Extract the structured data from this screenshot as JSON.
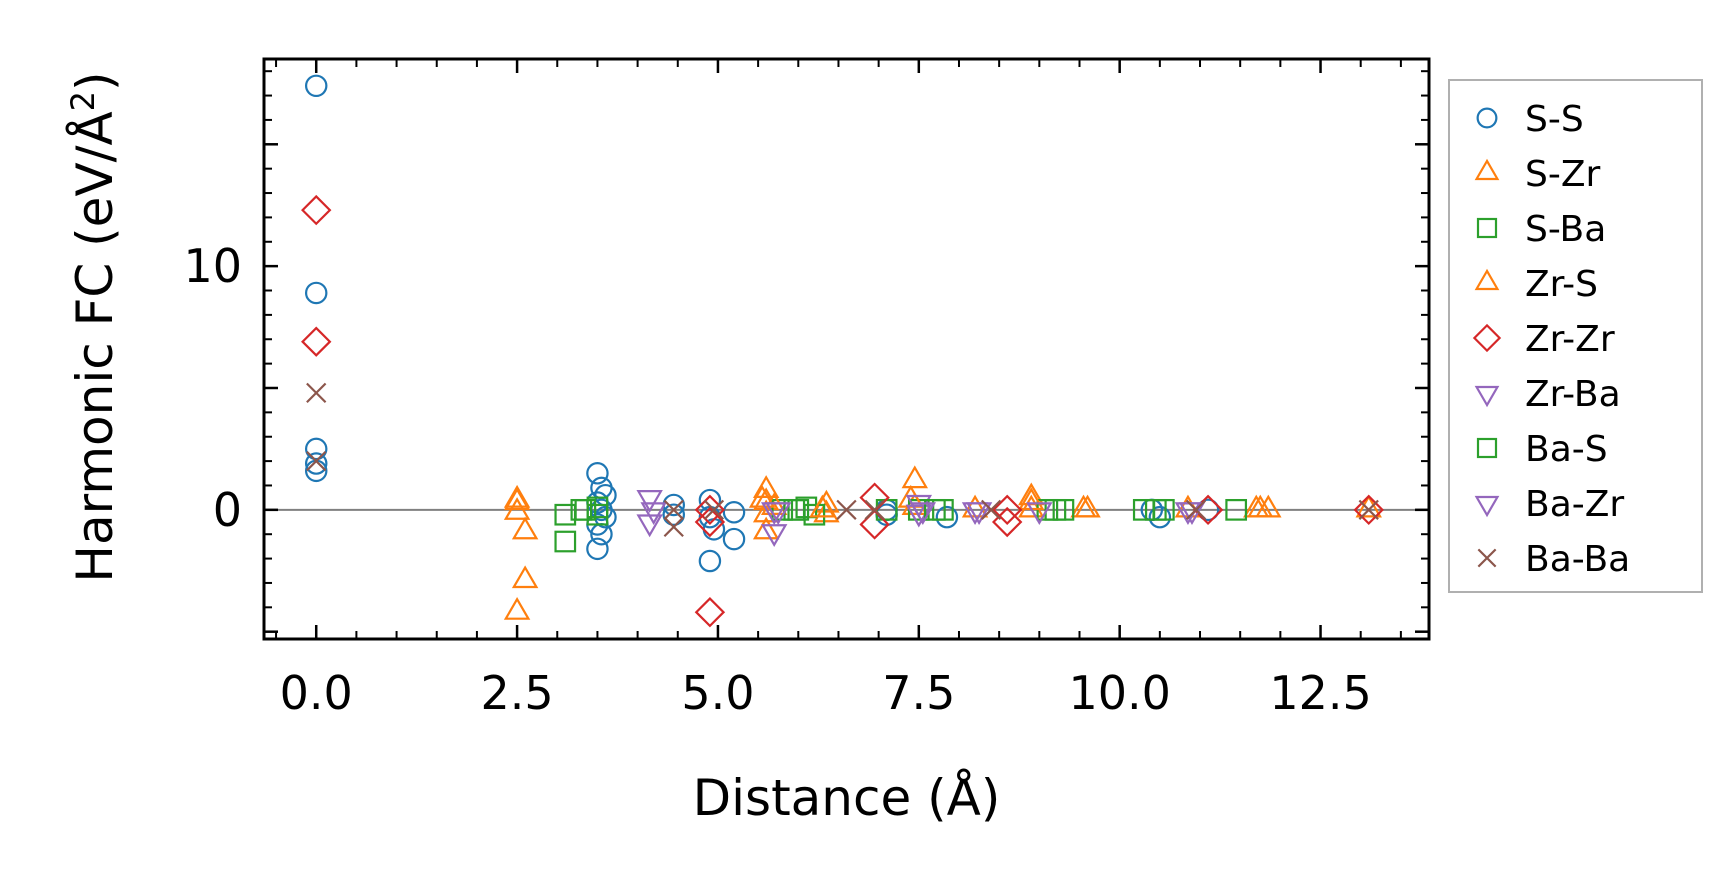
{
  "chart_data": {
    "type": "scatter",
    "title": "",
    "xlabel": "Distance (Å)",
    "ylabel": "Harmonic FC (eV/Å",
    "ylabel_sup": "2",
    "ylabel_close": ")",
    "xlim": [
      -0.65,
      13.85
    ],
    "ylim": [
      -5.3,
      18.5
    ],
    "xticks": [
      0.0,
      2.5,
      5.0,
      7.5,
      10.0,
      12.5
    ],
    "xtick_labels": [
      "0.0",
      "2.5",
      "5.0",
      "7.5",
      "10.0",
      "12.5"
    ],
    "yticks": [
      0,
      10
    ],
    "ytick_labels": [
      "0",
      "10"
    ],
    "reference_line_y": 0,
    "legend_position": "outside-right",
    "series": [
      {
        "name": "S-S",
        "marker": "circle",
        "color": "#1f77b4",
        "points": [
          [
            0,
            17.4
          ],
          [
            0,
            8.9
          ],
          [
            0,
            2.5
          ],
          [
            0,
            1.9
          ],
          [
            0,
            1.6
          ],
          [
            3.5,
            1.5
          ],
          [
            3.55,
            0.9
          ],
          [
            3.6,
            0.6
          ],
          [
            3.5,
            0.3
          ],
          [
            3.55,
            0.0
          ],
          [
            3.6,
            -0.3
          ],
          [
            3.5,
            -0.6
          ],
          [
            3.55,
            -1.0
          ],
          [
            3.5,
            -1.6
          ],
          [
            4.45,
            0.2
          ],
          [
            4.45,
            -0.2
          ],
          [
            4.9,
            0.4
          ],
          [
            4.9,
            -0.3
          ],
          [
            4.95,
            -0.8
          ],
          [
            4.9,
            -2.1
          ],
          [
            5.2,
            -0.1
          ],
          [
            5.2,
            -1.2
          ],
          [
            7.1,
            0.0
          ],
          [
            7.1,
            -0.2
          ],
          [
            7.85,
            -0.3
          ],
          [
            10.4,
            0.0
          ],
          [
            10.5,
            -0.3
          ],
          [
            11.1,
            0.0
          ]
        ]
      },
      {
        "name": "S-Zr",
        "marker": "triangle-up",
        "color": "#ff7f0e",
        "points": [
          [
            2.5,
            0.4
          ],
          [
            2.5,
            -0.1
          ],
          [
            2.6,
            -0.9
          ],
          [
            2.6,
            -2.9
          ],
          [
            2.5,
            -4.2
          ],
          [
            5.6,
            0.8
          ],
          [
            5.6,
            0.3
          ],
          [
            5.6,
            -0.2
          ],
          [
            5.6,
            -0.9
          ],
          [
            6.35,
            0.2
          ],
          [
            6.35,
            -0.2
          ],
          [
            7.45,
            1.2
          ],
          [
            7.45,
            0.1
          ],
          [
            8.2,
            0.0
          ],
          [
            8.9,
            0.5
          ],
          [
            8.9,
            0.0
          ],
          [
            9.6,
            0.0
          ],
          [
            10.85,
            0.0
          ],
          [
            11.7,
            0.0
          ],
          [
            11.85,
            0.0
          ],
          [
            13.1,
            0.0
          ]
        ]
      },
      {
        "name": "S-Ba",
        "marker": "square",
        "color": "#2ca02c",
        "points": [
          [
            3.1,
            -0.2
          ],
          [
            3.1,
            -1.3
          ],
          [
            3.35,
            0.0
          ],
          [
            3.5,
            0.1
          ],
          [
            3.5,
            -0.2
          ],
          [
            5.8,
            0.0
          ],
          [
            6.0,
            0.0
          ],
          [
            6.1,
            0.1
          ],
          [
            6.2,
            -0.2
          ],
          [
            7.1,
            0.0
          ],
          [
            7.5,
            0.0
          ],
          [
            7.8,
            0.0
          ],
          [
            9.1,
            0.0
          ],
          [
            9.2,
            0.0
          ],
          [
            10.3,
            0.0
          ],
          [
            10.55,
            0.0
          ],
          [
            11.45,
            0.0
          ]
        ]
      },
      {
        "name": "Zr-S",
        "marker": "triangle-up",
        "color": "#ff7f0e",
        "points": [
          [
            2.5,
            0.3
          ],
          [
            5.55,
            0.4
          ],
          [
            5.7,
            0.1
          ],
          [
            6.3,
            0.0
          ],
          [
            7.4,
            0.4
          ],
          [
            8.9,
            0.3
          ],
          [
            9.55,
            0.0
          ],
          [
            11.75,
            0.0
          ]
        ]
      },
      {
        "name": "Zr-Zr",
        "marker": "diamond",
        "color": "#d62728",
        "points": [
          [
            0,
            12.3
          ],
          [
            0,
            6.9
          ],
          [
            4.9,
            0.0
          ],
          [
            4.9,
            -0.5
          ],
          [
            4.9,
            -4.2
          ],
          [
            6.95,
            0.5
          ],
          [
            6.95,
            -0.6
          ],
          [
            8.6,
            0.0
          ],
          [
            8.6,
            -0.5
          ],
          [
            11.1,
            0.0
          ],
          [
            13.1,
            0.0
          ]
        ]
      },
      {
        "name": "Zr-Ba",
        "marker": "triangle-down",
        "color": "#9467bd",
        "points": [
          [
            4.15,
            0.5
          ],
          [
            4.15,
            -0.5
          ],
          [
            5.7,
            0.0
          ],
          [
            5.7,
            -0.9
          ],
          [
            7.5,
            0.3
          ],
          [
            7.5,
            -0.1
          ],
          [
            8.2,
            0.0
          ],
          [
            9.0,
            0.0
          ],
          [
            10.85,
            0.0
          ]
        ]
      },
      {
        "name": "Ba-S",
        "marker": "square",
        "color": "#2ca02c",
        "points": [
          [
            3.3,
            0.0
          ],
          [
            5.95,
            0.0
          ],
          [
            7.7,
            0.0
          ],
          [
            9.3,
            0.0
          ],
          [
            10.45,
            0.0
          ]
        ]
      },
      {
        "name": "Ba-Zr",
        "marker": "triangle-down",
        "color": "#9467bd",
        "points": [
          [
            4.2,
            0.0
          ],
          [
            5.75,
            0.0
          ],
          [
            7.55,
            0.0
          ],
          [
            8.25,
            0.0
          ],
          [
            10.9,
            0.0
          ]
        ]
      },
      {
        "name": "Ba-Ba",
        "marker": "x",
        "color": "#8c564b",
        "points": [
          [
            0,
            4.8
          ],
          [
            0,
            2.0
          ],
          [
            4.45,
            0.0
          ],
          [
            4.45,
            -0.7
          ],
          [
            4.95,
            0.0
          ],
          [
            6.6,
            0.0
          ],
          [
            6.95,
            0.0
          ],
          [
            8.4,
            0.0
          ],
          [
            10.95,
            0.0
          ],
          [
            13.1,
            0.0
          ]
        ]
      }
    ]
  }
}
